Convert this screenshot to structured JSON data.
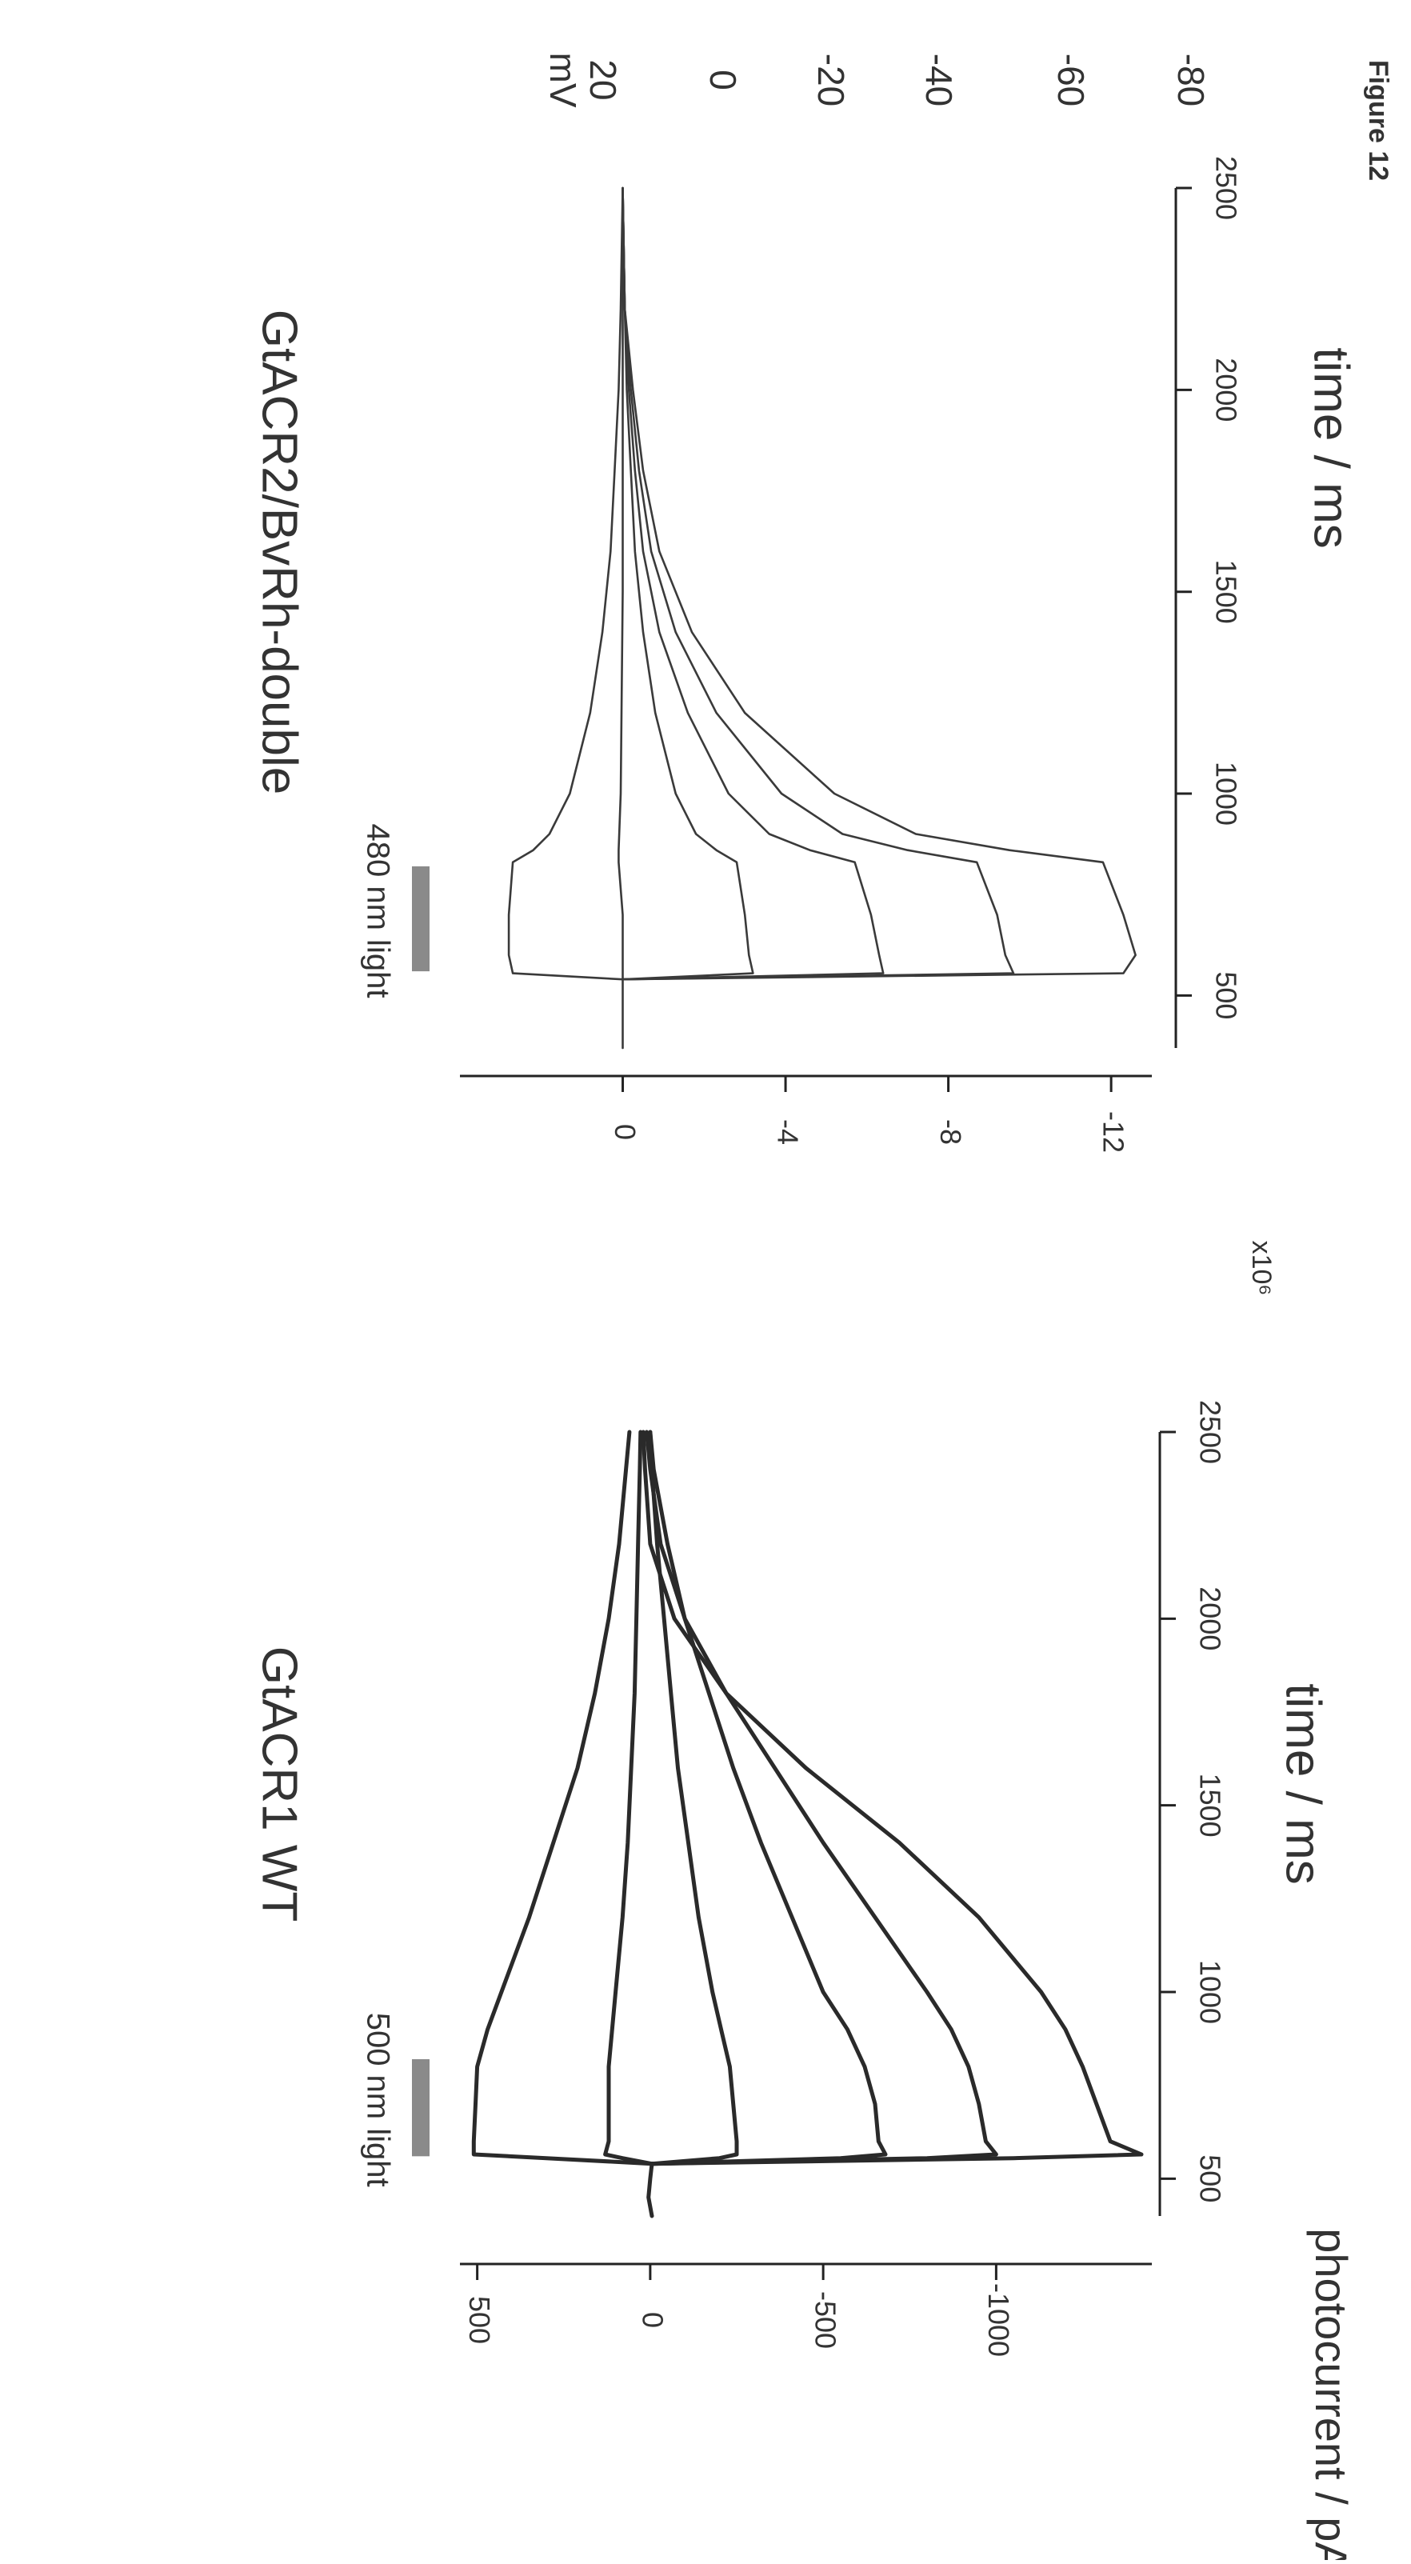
{
  "figure_label": "Figure 12",
  "chart_data": [
    {
      "type": "line",
      "title": "GtACR1 WT",
      "stimulus_label": "500 nm light",
      "stimulus_window": [
        560,
        820
      ],
      "xlabel": "time / ms",
      "ylabel": "photocurrent / pA",
      "xlim": [
        400,
        2500
      ],
      "ylim": [
        -1450,
        550
      ],
      "xticks": [
        500,
        1000,
        1500,
        2000,
        2500
      ],
      "yticks": [
        500,
        0,
        -500,
        -1000
      ],
      "grid": false,
      "series": [
        {
          "x": [
            400,
            450,
            500,
            540,
            555,
            565,
            600,
            700,
            800,
            900,
            1000,
            1200,
            1400,
            1600,
            1800,
            2000,
            2200,
            2400,
            2500
          ],
          "y": [
            -5,
            5,
            0,
            -5,
            300,
            510,
            510,
            505,
            500,
            470,
            430,
            350,
            280,
            210,
            160,
            120,
            90,
            70,
            60
          ]
        },
        {
          "x": [
            540,
            555,
            565,
            600,
            700,
            800,
            900,
            1000,
            1200,
            1400,
            1600,
            1800,
            2000,
            2200,
            2400,
            2500
          ],
          "y": [
            -5,
            80,
            130,
            120,
            120,
            120,
            110,
            100,
            80,
            65,
            55,
            45,
            40,
            35,
            30,
            28
          ]
        },
        {
          "x": [
            540,
            555,
            565,
            600,
            700,
            800,
            900,
            1000,
            1200,
            1400,
            1600,
            1800,
            2000,
            2200,
            2400,
            2500
          ],
          "y": [
            -5,
            -200,
            -250,
            -250,
            -240,
            -230,
            -205,
            -180,
            -140,
            -110,
            -80,
            -60,
            -40,
            -20,
            -5,
            0
          ]
        },
        {
          "x": [
            540,
            555,
            565,
            600,
            700,
            800,
            900,
            1000,
            1200,
            1400,
            1600,
            1800,
            2000,
            2200,
            2400,
            2500
          ],
          "y": [
            -5,
            -550,
            -680,
            -660,
            -650,
            -620,
            -570,
            -500,
            -410,
            -320,
            -240,
            -170,
            -100,
            -50,
            -10,
            0
          ]
        },
        {
          "x": [
            540,
            555,
            565,
            600,
            700,
            800,
            900,
            1000,
            1200,
            1400,
            1600,
            1800,
            2000,
            2200,
            2400,
            2500
          ],
          "y": [
            -5,
            -800,
            -1000,
            -970,
            -950,
            -920,
            -870,
            -800,
            -650,
            -500,
            -360,
            -220,
            -100,
            -30,
            0,
            10
          ]
        },
        {
          "x": [
            540,
            555,
            565,
            600,
            700,
            800,
            900,
            1000,
            1200,
            1400,
            1600,
            1800,
            2000,
            2200,
            2400,
            2500
          ],
          "y": [
            -5,
            -1050,
            -1420,
            -1330,
            -1290,
            -1250,
            -1200,
            -1130,
            -950,
            -720,
            -450,
            -220,
            -70,
            0,
            15,
            20
          ]
        }
      ]
    },
    {
      "type": "line",
      "title": "GtACR2/BvRh-double",
      "stimulus_label": "480 nm light",
      "stimulus_window": [
        560,
        820
      ],
      "xlabel": "time / ms",
      "ylabel": "",
      "y_multiplier": "x10⁶",
      "xlim": [
        370,
        2500
      ],
      "ylim": [
        -13,
        4
      ],
      "xticks": [
        500,
        1000,
        1500,
        2000,
        2500
      ],
      "yticks": [
        0,
        -4,
        -8,
        -12
      ],
      "grid": false,
      "legend_title": "mV",
      "legend_values": [
        "20",
        "0",
        "-20",
        "-40",
        "-60",
        "-80"
      ],
      "series": [
        {
          "name": "20",
          "x": [
            370,
            540,
            555,
            600,
            700,
            830,
            860,
            900,
            1000,
            1200,
            1400,
            1600,
            1800,
            2000,
            2200,
            2500
          ],
          "y": [
            0,
            0,
            2.7,
            2.8,
            2.8,
            2.7,
            2.2,
            1.8,
            1.3,
            0.8,
            0.5,
            0.3,
            0.2,
            0.1,
            0.05,
            0
          ]
        },
        {
          "name": "0",
          "x": [
            540,
            555,
            600,
            700,
            830,
            860,
            1000,
            1500,
            2000,
            2500
          ],
          "y": [
            0,
            0,
            0,
            0,
            0.1,
            0.1,
            0.05,
            0,
            0,
            0
          ]
        },
        {
          "name": "-20",
          "x": [
            540,
            555,
            600,
            700,
            830,
            860,
            900,
            1000,
            1200,
            1400,
            1600,
            1800,
            2000,
            2200,
            2500
          ],
          "y": [
            0,
            -3.2,
            -3.1,
            -3.0,
            -2.8,
            -2.3,
            -1.8,
            -1.3,
            -0.8,
            -0.5,
            -0.3,
            -0.2,
            -0.1,
            -0.05,
            0
          ]
        },
        {
          "name": "-40",
          "x": [
            540,
            555,
            600,
            700,
            830,
            860,
            900,
            1000,
            1200,
            1400,
            1600,
            1800,
            2000,
            2200,
            2500
          ],
          "y": [
            0,
            -6.4,
            -6.3,
            -6.1,
            -5.7,
            -4.6,
            -3.6,
            -2.6,
            -1.6,
            -0.9,
            -0.5,
            -0.3,
            -0.15,
            -0.05,
            0
          ]
        },
        {
          "name": "-60",
          "x": [
            540,
            555,
            600,
            700,
            830,
            860,
            900,
            1000,
            1200,
            1400,
            1600,
            1800,
            2000,
            2200,
            2500
          ],
          "y": [
            0,
            -9.6,
            -9.4,
            -9.2,
            -8.7,
            -7.0,
            -5.4,
            -3.9,
            -2.3,
            -1.3,
            -0.7,
            -0.4,
            -0.2,
            -0.05,
            0
          ]
        },
        {
          "name": "-80",
          "x": [
            540,
            555,
            600,
            700,
            830,
            860,
            900,
            1000,
            1200,
            1400,
            1600,
            1800,
            2000,
            2200,
            2500
          ],
          "y": [
            0,
            -12.3,
            -12.6,
            -12.3,
            -11.8,
            -9.5,
            -7.2,
            -5.2,
            -3.0,
            -1.7,
            -0.9,
            -0.5,
            -0.25,
            -0.05,
            0
          ]
        }
      ]
    }
  ]
}
